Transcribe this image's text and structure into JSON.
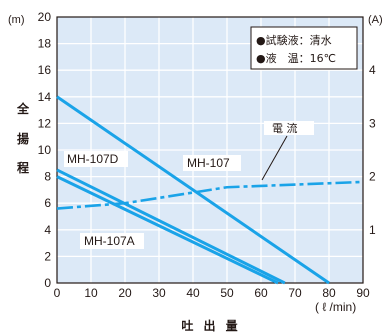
{
  "chart_data": {
    "type": "line",
    "xlabel": "吐 出 量",
    "xunit": "( ℓ /min)",
    "ylabel": "全 揚 程",
    "yunit": "(m)",
    "y2label": "電 流",
    "y2unit": "(A)",
    "xlim": [
      0,
      90
    ],
    "ylim": [
      0,
      20
    ],
    "y2lim": [
      0,
      5
    ],
    "xticks": [
      "0",
      "10",
      "20",
      "30",
      "40",
      "50",
      "60",
      "70",
      "80",
      "90"
    ],
    "yticks": [
      "0",
      "2",
      "4",
      "6",
      "8",
      "10",
      "12",
      "14",
      "16",
      "18",
      "20"
    ],
    "y2ticks": [
      "1",
      "2",
      "3",
      "4"
    ],
    "grid": true,
    "series": [
      {
        "name": "MH-107",
        "axis": "left",
        "style": "solid",
        "x": [
          0,
          80
        ],
        "y": [
          14,
          0
        ]
      },
      {
        "name": "MH-107D",
        "axis": "left",
        "style": "solid",
        "x": [
          0,
          67
        ],
        "y": [
          8.5,
          0
        ]
      },
      {
        "name": "MH-107A",
        "axis": "left",
        "style": "solid",
        "x": [
          0,
          65
        ],
        "y": [
          8,
          0
        ]
      },
      {
        "name": "電流",
        "axis": "right",
        "style": "dashdot",
        "x": [
          0,
          20,
          50,
          90
        ],
        "y": [
          1.4,
          1.5,
          1.8,
          1.9
        ]
      }
    ],
    "series_labels": {
      "mh107": "MH-107",
      "mh107d": "MH-107D",
      "mh107a": "MH-107A",
      "current": "電  流"
    },
    "legend": {
      "line1": "●試験液：清水",
      "line2": "●液　温：16℃"
    },
    "colors": {
      "grid_bg": "#dce9f7",
      "grid_line": "#ffffff",
      "series": "#1aa3e8",
      "text": "#231815"
    }
  }
}
